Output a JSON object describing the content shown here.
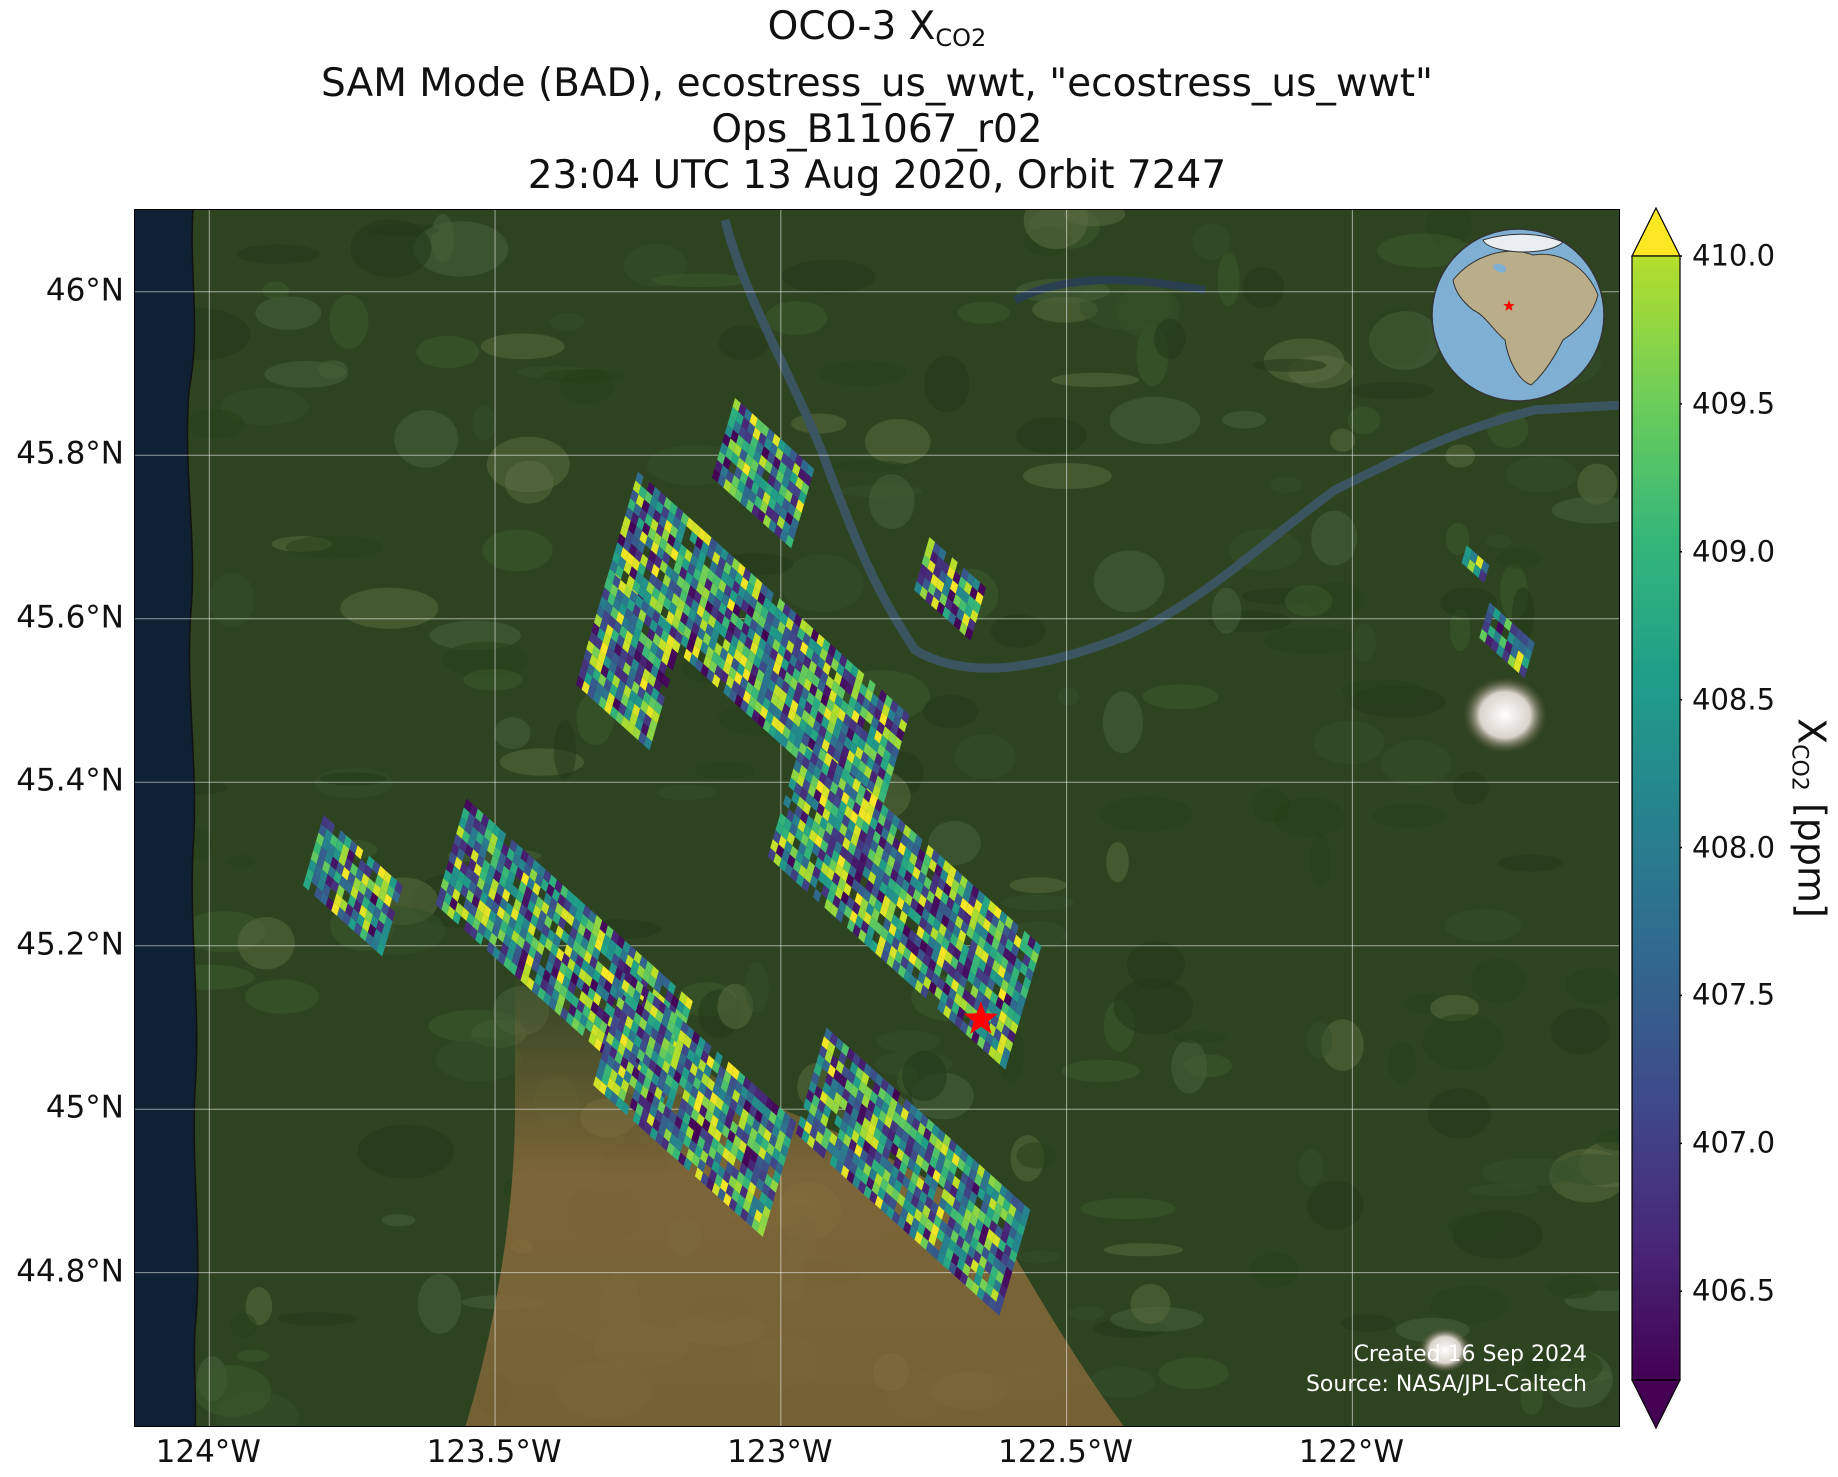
{
  "title": {
    "line1_prefix": "OCO-3 X",
    "line1_sub": "CO2",
    "line2": "SAM Mode (BAD), ecostress_us_wwt, \"ecostress_us_wwt\"",
    "line3": "Ops_B11067_r02",
    "line4": "23:04 UTC 13 Aug 2020, Orbit 7247"
  },
  "map": {
    "lat_ticks": [
      "46°N",
      "45.8°N",
      "45.6°N",
      "45.4°N",
      "45.2°N",
      "45°N",
      "44.8°N"
    ],
    "lon_ticks": [
      "124°W",
      "123.5°W",
      "123°W",
      "122.5°W",
      "122°W"
    ],
    "lat_values": [
      46.0,
      45.8,
      45.6,
      45.4,
      45.2,
      45.0,
      44.8
    ],
    "lon_values": [
      -124.0,
      -123.5,
      -123.0,
      -122.5,
      -122.0
    ],
    "extent": {
      "lon_min": -124.13,
      "lon_max": -121.53,
      "lat_min": 44.61,
      "lat_max": 46.1
    },
    "target_marker": {
      "lon": -122.65,
      "lat": 45.11,
      "color": "#ff0000",
      "icon": "star-icon"
    },
    "gridlines": true
  },
  "colorbar": {
    "label_prefix": "X",
    "label_sub": "CO2",
    "label_suffix": " [ppm]",
    "min": 406.2,
    "max": 410.0,
    "ticks": [
      "410.0",
      "409.5",
      "409.0",
      "408.5",
      "408.0",
      "407.5",
      "407.0",
      "406.5"
    ],
    "tick_values": [
      410.0,
      409.5,
      409.0,
      408.5,
      408.0,
      407.5,
      407.0,
      406.5
    ],
    "colormap": "viridis",
    "extend": "both"
  },
  "credit": {
    "line1": "Created 16 Sep 2024",
    "line2": "Source: NASA/JPL-Caltech"
  },
  "inset": {
    "type": "globe",
    "marker_icon": "star-icon",
    "marker_color": "#ff0000"
  },
  "chart_data": {
    "type": "heatmap",
    "title": "OCO-3 XCO2 — SAM Mode (BAD), ecostress_us_wwt, \"ecostress_us_wwt\" — Ops_B11067_r02 — 23:04 UTC 13 Aug 2020, Orbit 7247",
    "xlabel": "",
    "ylabel": "",
    "x_ticks": [
      "124°W",
      "123.5°W",
      "123°W",
      "122.5°W",
      "122°W"
    ],
    "y_ticks": [
      "46°N",
      "45.8°N",
      "45.6°N",
      "45.4°N",
      "45.2°N",
      "45°N",
      "44.8°N"
    ],
    "value_range": [
      406.2,
      410.0
    ],
    "units": "ppm",
    "swaths": [
      {
        "start_lon": -123.08,
        "start_lat": 45.87,
        "rows": 9,
        "cols": 14
      },
      {
        "start_lon": -122.74,
        "start_lat": 45.7,
        "rows": 6,
        "cols": 10
      },
      {
        "start_lon": -123.25,
        "start_lat": 45.78,
        "rows": 13,
        "cols": 48
      },
      {
        "start_lon": -123.3,
        "start_lat": 45.66,
        "rows": 13,
        "cols": 13
      },
      {
        "start_lon": -122.96,
        "start_lat": 45.46,
        "rows": 14,
        "cols": 42
      },
      {
        "start_lon": -123.55,
        "start_lat": 45.38,
        "rows": 12,
        "cols": 40
      },
      {
        "start_lon": -123.8,
        "start_lat": 45.36,
        "rows": 8,
        "cols": 14
      },
      {
        "start_lon": -123.27,
        "start_lat": 45.17,
        "rows": 13,
        "cols": 30
      },
      {
        "start_lon": -122.92,
        "start_lat": 45.1,
        "rows": 12,
        "cols": 36
      },
      {
        "start_lon": -121.8,
        "start_lat": 45.69,
        "rows": 2,
        "cols": 4
      },
      {
        "start_lon": -121.76,
        "start_lat": 45.62,
        "rows": 4,
        "cols": 8
      }
    ]
  }
}
